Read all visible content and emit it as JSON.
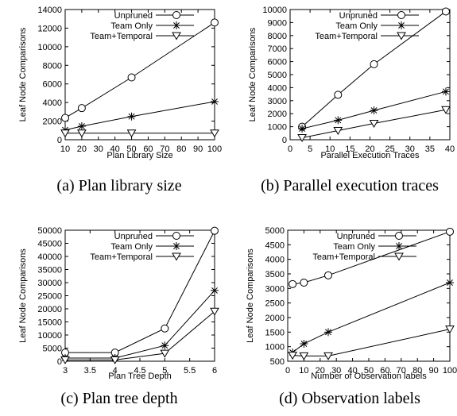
{
  "chart_data": [
    {
      "type": "line",
      "caption": "(a) Plan library size",
      "xlabel": "Plan Library Size",
      "ylabel": "Leaf Node Comparisons",
      "xlim": [
        10,
        100
      ],
      "ylim": [
        0,
        14000
      ],
      "xticks": [
        10,
        20,
        30,
        40,
        50,
        60,
        70,
        80,
        90,
        100
      ],
      "yticks": [
        0,
        2000,
        4000,
        6000,
        8000,
        10000,
        12000,
        14000
      ],
      "legend_position": "top-left",
      "series": [
        {
          "name": "Unpruned",
          "marker": "circle",
          "x": [
            10,
            20,
            50,
            100
          ],
          "y": [
            2350,
            3400,
            6700,
            12600
          ]
        },
        {
          "name": "Team Only",
          "marker": "star",
          "x": [
            10,
            20,
            50,
            100
          ],
          "y": [
            1050,
            1450,
            2500,
            4100
          ]
        },
        {
          "name": "Team+Temporal",
          "marker": "triangle",
          "x": [
            10,
            20,
            50,
            100
          ],
          "y": [
            700,
            700,
            700,
            700
          ]
        }
      ]
    },
    {
      "type": "line",
      "caption": "(b) Parallel execution traces",
      "xlabel": "Parallel Execution Traces",
      "ylabel": "Leaf Node Comparisons",
      "xlim": [
        0,
        40
      ],
      "ylim": [
        0,
        10000
      ],
      "xticks": [
        0,
        5,
        10,
        15,
        20,
        25,
        30,
        35,
        40
      ],
      "yticks": [
        0,
        1000,
        2000,
        3000,
        4000,
        5000,
        6000,
        7000,
        8000,
        9000,
        10000
      ],
      "legend_position": "top-left",
      "series": [
        {
          "name": "Unpruned",
          "marker": "circle",
          "x": [
            3,
            12,
            21,
            39
          ],
          "y": [
            1000,
            3450,
            5800,
            9850
          ]
        },
        {
          "name": "Team Only",
          "marker": "star",
          "x": [
            3,
            12,
            21,
            39
          ],
          "y": [
            850,
            1500,
            2250,
            3700
          ]
        },
        {
          "name": "Team+Temporal",
          "marker": "triangle",
          "x": [
            3,
            12,
            21,
            39
          ],
          "y": [
            150,
            700,
            1250,
            2300
          ]
        }
      ]
    },
    {
      "type": "line",
      "caption": "(c) Plan tree depth",
      "xlabel": "Plan Tree Depth",
      "ylabel": "Leaf Node Comparisons",
      "xlim": [
        3,
        6
      ],
      "ylim": [
        0,
        50000
      ],
      "xticks": [
        "3",
        "3.5",
        "4",
        "4.5",
        "5",
        "5.5",
        "6"
      ],
      "yticks": [
        0,
        5000,
        10000,
        15000,
        20000,
        25000,
        30000,
        35000,
        40000,
        45000,
        50000
      ],
      "legend_position": "top-left",
      "series": [
        {
          "name": "Unpruned",
          "marker": "circle",
          "x": [
            3,
            4,
            5,
            6
          ],
          "y": [
            3300,
            3300,
            12500,
            49800
          ]
        },
        {
          "name": "Team Only",
          "marker": "star",
          "x": [
            3,
            4,
            5,
            6
          ],
          "y": [
            1200,
            1200,
            6000,
            27000
          ]
        },
        {
          "name": "Team+Temporal",
          "marker": "triangle",
          "x": [
            3,
            4,
            5,
            6
          ],
          "y": [
            500,
            500,
            3000,
            19000
          ]
        }
      ]
    },
    {
      "type": "line",
      "caption": "(d) Observation labels",
      "xlabel": "Number of Observation labels",
      "ylabel": "Leaf Node Comparisons",
      "xlim": [
        0,
        100
      ],
      "ylim": [
        500,
        5000
      ],
      "xticks": [
        0,
        10,
        20,
        30,
        40,
        50,
        60,
        70,
        80,
        90,
        100
      ],
      "yticks": [
        500,
        1000,
        1500,
        2000,
        2500,
        3000,
        3500,
        4000,
        4500,
        5000
      ],
      "legend_position": "top-left",
      "series": [
        {
          "name": "Unpruned",
          "marker": "circle",
          "x": [
            3,
            10,
            25,
            100
          ],
          "y": [
            3150,
            3200,
            3450,
            4950
          ]
        },
        {
          "name": "Team Only",
          "marker": "star",
          "x": [
            3,
            10,
            25,
            100
          ],
          "y": [
            800,
            1100,
            1500,
            3200
          ]
        },
        {
          "name": "Team+Temporal",
          "marker": "triangle",
          "x": [
            3,
            10,
            25,
            100
          ],
          "y": [
            700,
            680,
            680,
            1600
          ]
        }
      ]
    }
  ]
}
